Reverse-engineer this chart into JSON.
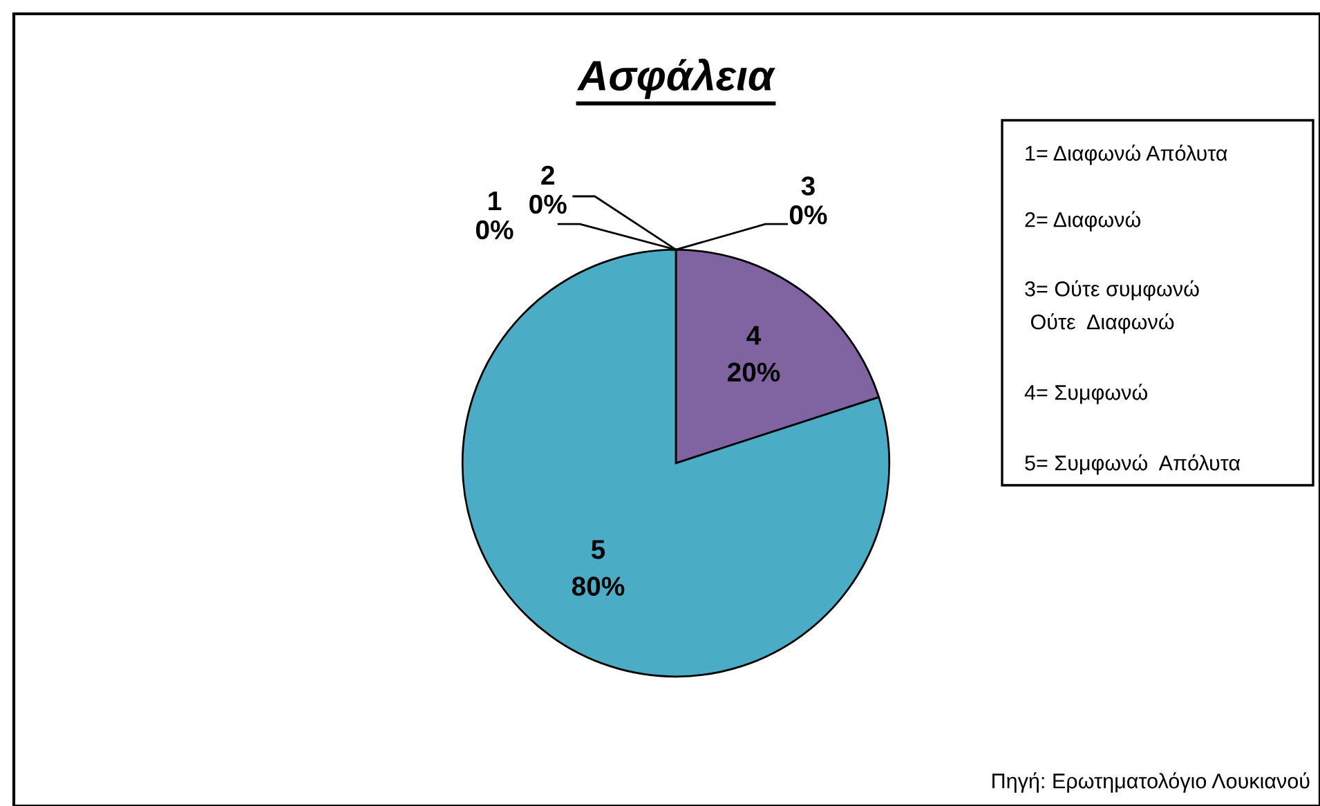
{
  "chart_data": {
    "type": "pie",
    "title": "Ασφάλεια",
    "categories": [
      "1",
      "2",
      "3",
      "4",
      "5"
    ],
    "values": [
      0,
      0,
      0,
      20,
      80
    ],
    "value_labels": [
      "0%",
      "0%",
      "0%",
      "20%",
      "80%"
    ],
    "colors": [
      "#4f81bd",
      "#c0504d",
      "#9bbb59",
      "#8064a2",
      "#4bacc6"
    ],
    "annotations": [
      "1= Διαφωνώ Απόλυτα",
      "2= Διαφωνώ",
      "3= Ούτε συμφωνώ\n Ούτε  Διαφωνώ",
      "4= Συμφωνώ",
      "5= Συμφωνώ  Απόλυτα",
      "Πηγή: Ερωτηματολόγιο Λουκιανού"
    ]
  }
}
